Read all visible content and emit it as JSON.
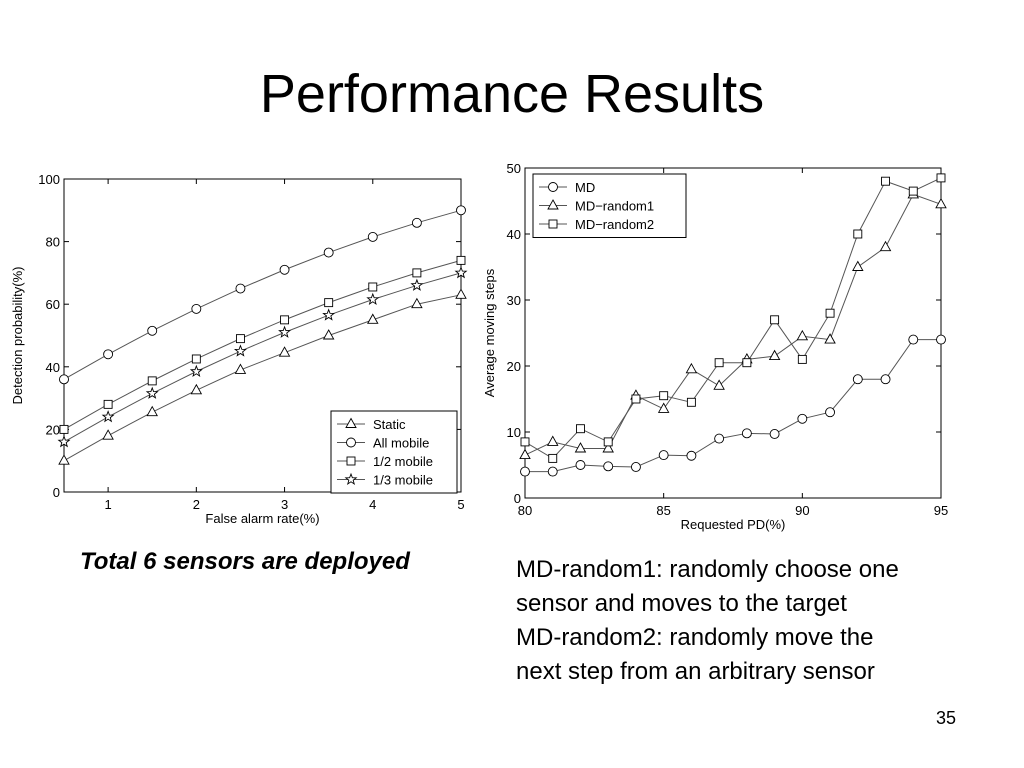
{
  "slide": {
    "title": "Performance Results",
    "left_caption": "Total 6 sensors are deployed",
    "right_caption_lines": [
      "MD-random1: randomly choose one",
      "sensor and moves to the target",
      "MD-random2: randomly move the",
      "next step from an arbitrary sensor"
    ],
    "page_number": "35"
  },
  "chart_data": [
    {
      "type": "line",
      "xlabel": "False alarm rate(%)",
      "ylabel": "Detection probability(%)",
      "xlim": [
        0.5,
        5
      ],
      "ylim": [
        0,
        100
      ],
      "xticks": [
        1,
        2,
        3,
        4,
        5
      ],
      "yticks": [
        0,
        20,
        40,
        60,
        80,
        100
      ],
      "grid": false,
      "legend_position": "bottom-right",
      "x": [
        0.5,
        1.0,
        1.5,
        2.0,
        2.5,
        3.0,
        3.5,
        4.0,
        4.5,
        5.0
      ],
      "series": [
        {
          "name": "Static",
          "marker": "triangle",
          "values": [
            10,
            18,
            25.5,
            32.5,
            39,
            44.5,
            50,
            55,
            60,
            63
          ]
        },
        {
          "name": "All mobile",
          "marker": "circle",
          "values": [
            36,
            44,
            51.5,
            58.5,
            65,
            71,
            76.5,
            81.5,
            86,
            90
          ]
        },
        {
          "name": "1/2 mobile",
          "marker": "square",
          "values": [
            20,
            28,
            35.5,
            42.5,
            49,
            55,
            60.5,
            65.5,
            70,
            74
          ]
        },
        {
          "name": "1/3 mobile",
          "marker": "star",
          "values": [
            16,
            24,
            31.5,
            38.5,
            45,
            51,
            56.5,
            61.5,
            66,
            70
          ]
        }
      ]
    },
    {
      "type": "line",
      "xlabel": "Requested PD(%)",
      "ylabel": "Average moving steps",
      "xlim": [
        80,
        95
      ],
      "ylim": [
        0,
        50
      ],
      "xticks": [
        80,
        85,
        90,
        95
      ],
      "yticks": [
        0,
        10,
        20,
        30,
        40,
        50
      ],
      "grid": false,
      "legend_position": "top-left",
      "x": [
        80,
        81,
        82,
        83,
        84,
        85,
        86,
        87,
        88,
        89,
        90,
        91,
        92,
        93,
        94,
        95
      ],
      "series": [
        {
          "name": "MD",
          "marker": "circle",
          "values": [
            4,
            4,
            5,
            4.8,
            4.7,
            6.5,
            6.4,
            9,
            9.8,
            9.7,
            12,
            13,
            18,
            18,
            24,
            24
          ]
        },
        {
          "name": "MD−random1",
          "marker": "triangle",
          "values": [
            6.5,
            8.5,
            7.5,
            7.5,
            15.5,
            13.5,
            19.5,
            17,
            21,
            21.5,
            24.5,
            24,
            35,
            38,
            46,
            44.5
          ]
        },
        {
          "name": "MD−random2",
          "marker": "square",
          "values": [
            8.5,
            6,
            10.5,
            8.5,
            15,
            15.5,
            14.5,
            20.5,
            20.5,
            27,
            21,
            28,
            40,
            48,
            46.5,
            48.5
          ]
        }
      ]
    }
  ]
}
